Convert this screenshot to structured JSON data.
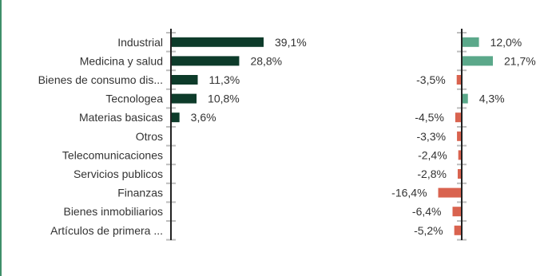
{
  "colors": {
    "left_bar": "#0d3b2a",
    "right_positive": "#5ba88a",
    "right_negative": "#d9634f",
    "axis": "#222222",
    "tick": "#bdbdbd",
    "frame_accent": "#3f8f6a"
  },
  "chart_data": [
    {
      "type": "bar",
      "orientation": "horizontal",
      "categories": [
        "Industrial",
        "Medicina y salud",
        "Bienes de consumo dis...",
        "Tecnologea",
        "Materias basicas",
        "Otros",
        "Telecomunicaciones",
        "Servicios publicos",
        "Finanzas",
        "Bienes inmobiliarios",
        "Artículos de primera ..."
      ],
      "values": [
        39.1,
        28.8,
        11.3,
        10.8,
        3.6,
        null,
        null,
        null,
        null,
        null,
        null
      ],
      "data_labels": [
        "39,1%",
        "28,8%",
        "11,3%",
        "10,8%",
        "3,6%",
        "",
        "",
        "",
        "",
        "",
        ""
      ],
      "xlim": [
        0,
        50
      ]
    },
    {
      "type": "bar",
      "orientation": "horizontal",
      "values": [
        12.0,
        21.7,
        -3.5,
        4.3,
        -4.5,
        -3.3,
        -2.4,
        -2.8,
        -16.4,
        -6.4,
        -5.2
      ],
      "data_labels": [
        "12,0%",
        "21,7%",
        "-3,5%",
        "4,3%",
        "-4,5%",
        "-3,3%",
        "-2,4%",
        "-2,8%",
        "-16,4%",
        "-6,4%",
        "-5,2%"
      ],
      "xlim": [
        -25,
        25
      ]
    }
  ]
}
